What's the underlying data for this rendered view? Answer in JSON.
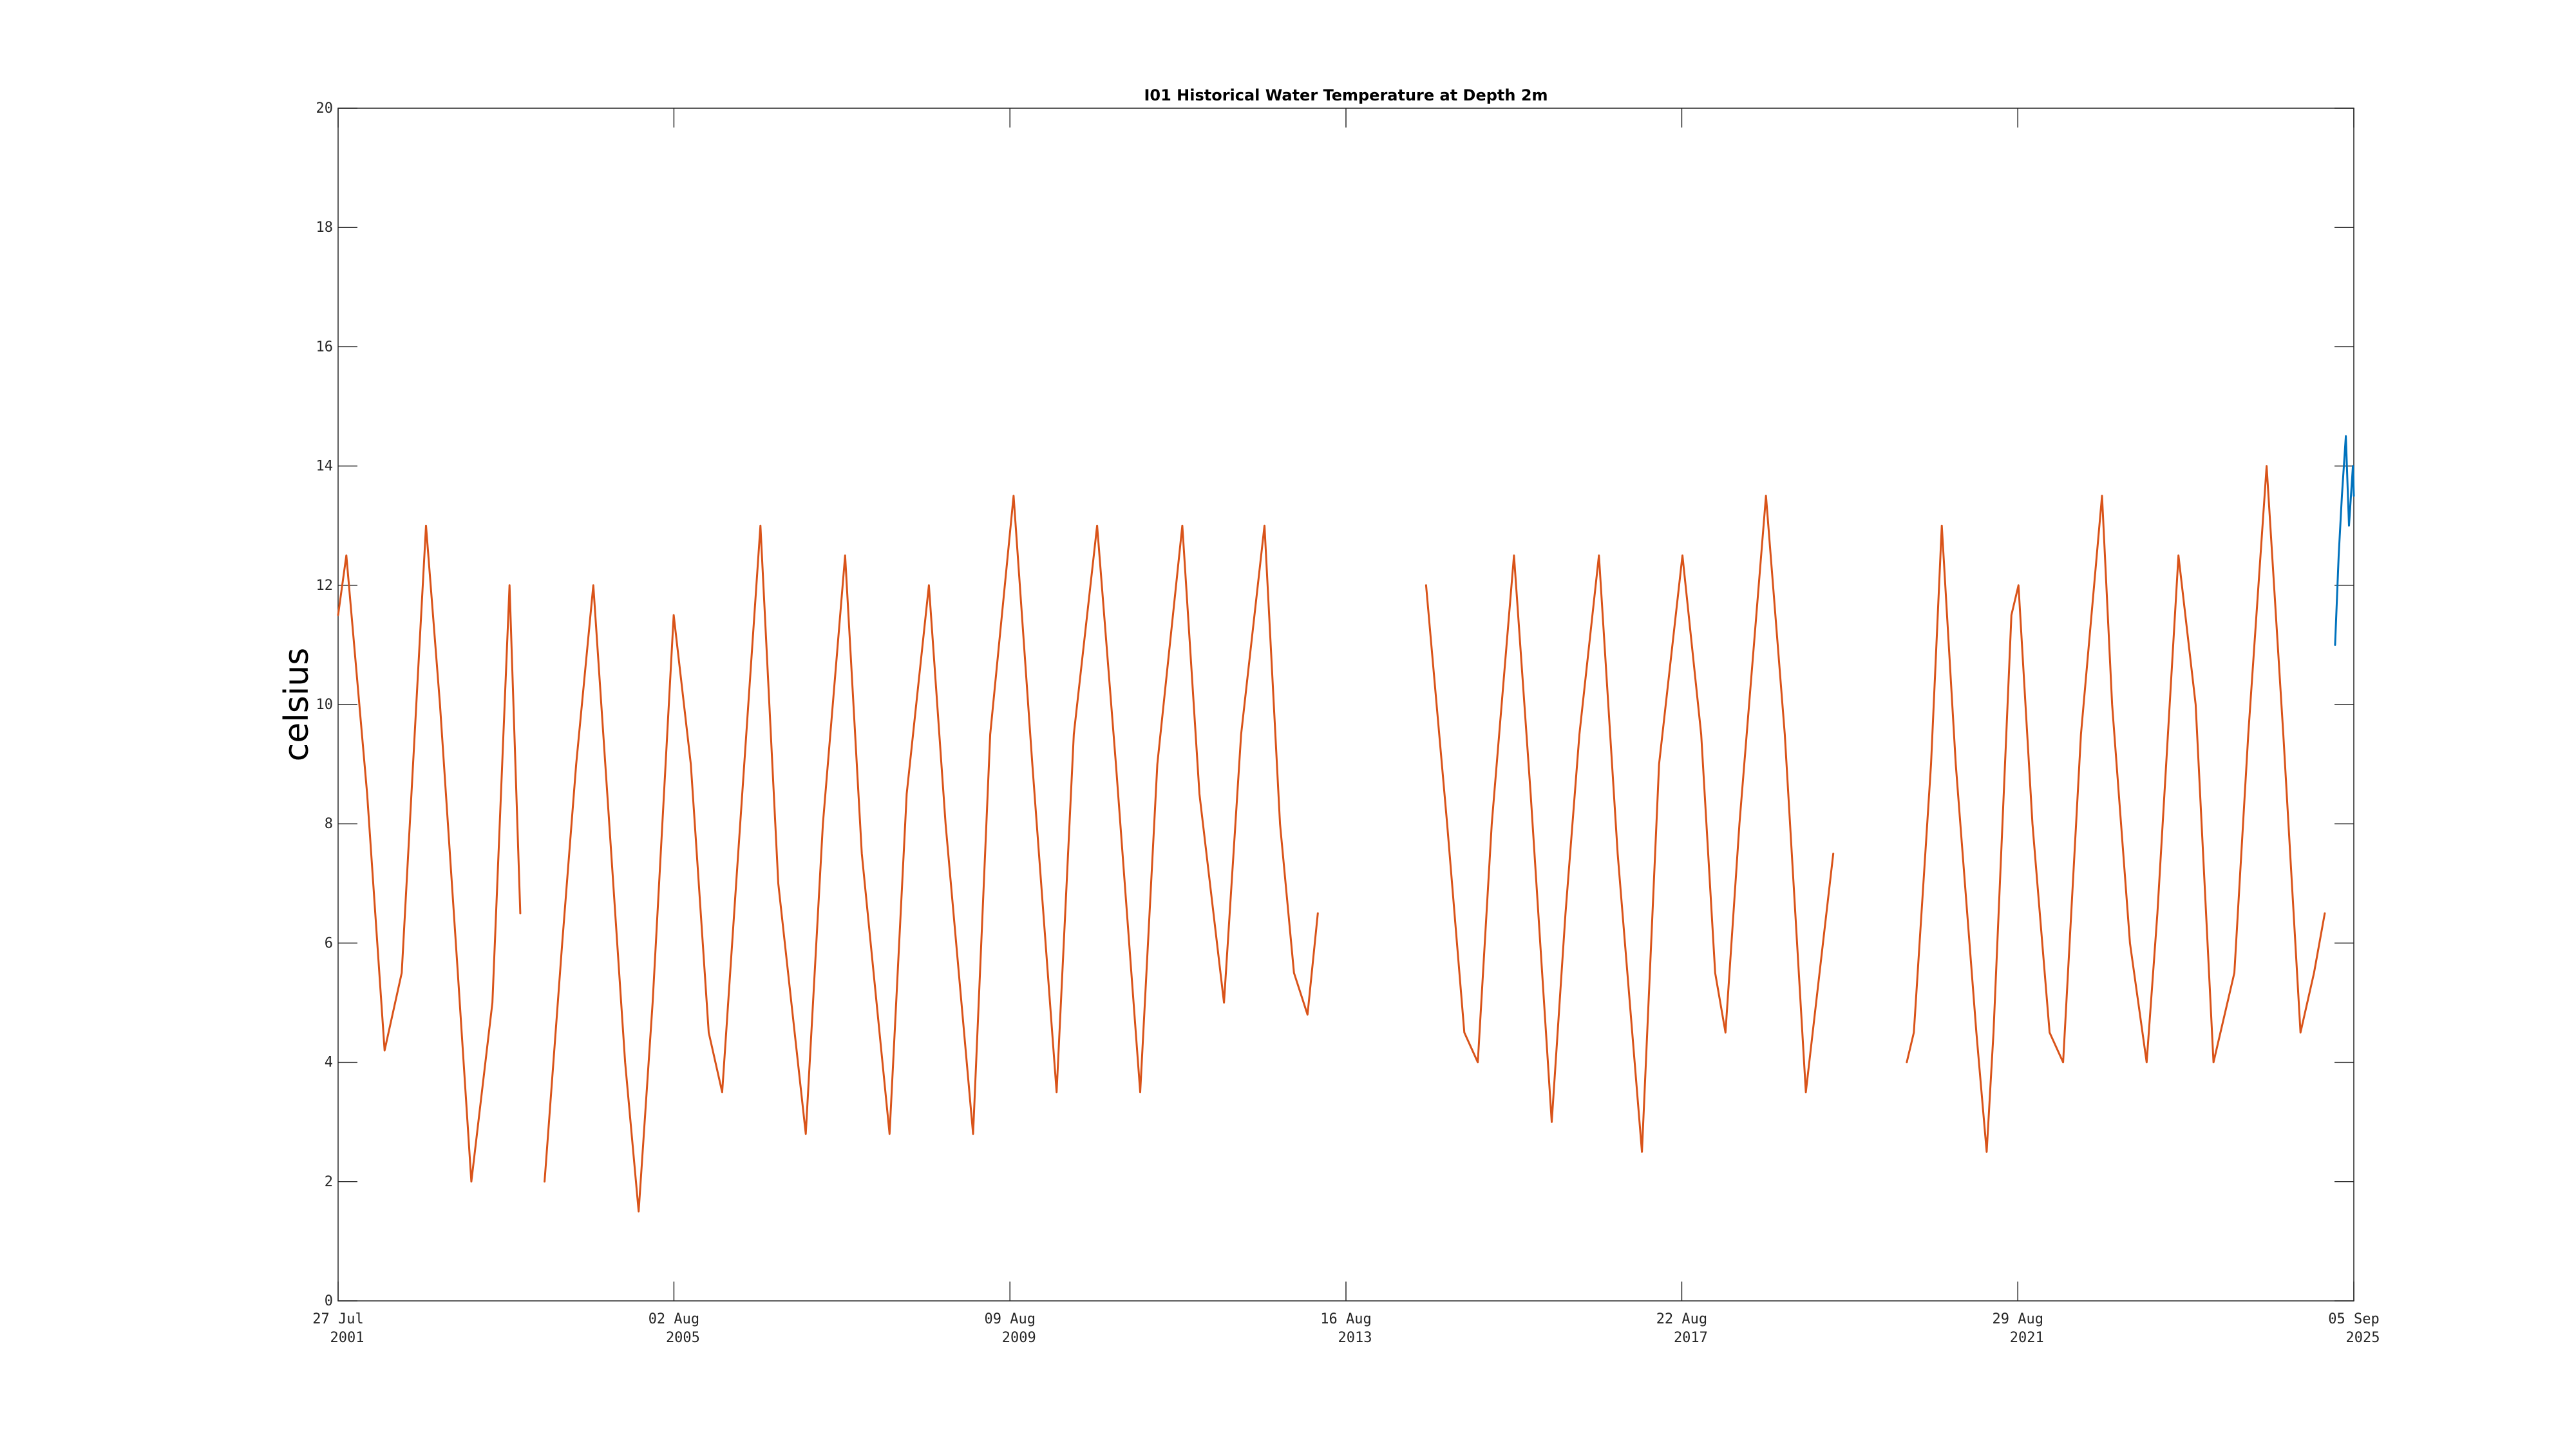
{
  "chart_data": {
    "type": "line",
    "title": "I01 Historical Water Temperature at Depth 2m",
    "xlabel": "",
    "ylabel": "celsius",
    "ylim": [
      0,
      20
    ],
    "yticks": [
      0,
      2,
      4,
      6,
      8,
      10,
      12,
      14,
      16,
      18,
      20
    ],
    "xlim": [
      "2001-07-27",
      "2025-09-05"
    ],
    "xticks": [
      {
        "date": "2001-07-27",
        "line1": "27 Jul",
        "line2": "2001"
      },
      {
        "date": "2005-08-02",
        "line1": "02 Aug",
        "line2": "2005"
      },
      {
        "date": "2009-08-09",
        "line1": "09 Aug",
        "line2": "2009"
      },
      {
        "date": "2013-08-16",
        "line1": "16 Aug",
        "line2": "2013"
      },
      {
        "date": "2017-08-22",
        "line1": "22 Aug",
        "line2": "2017"
      },
      {
        "date": "2021-08-29",
        "line1": "29 Aug",
        "line2": "2021"
      },
      {
        "date": "2025-09-05",
        "line1": "05 Sep",
        "line2": "2025"
      }
    ],
    "grid": false,
    "colors": {
      "historical": "#D95319",
      "recent": "#0072BD",
      "axis": "#262626"
    },
    "series": [
      {
        "role": "historical",
        "color": "#D95319",
        "segments": [
          {
            "x": [
              "2001-07-27",
              "2001-09-01",
              "2001-12-01",
              "2002-02-15",
              "2002-05-01",
              "2002-08-15",
              "2002-10-15",
              "2003-01-01",
              "2003-03-01",
              "2003-06-01",
              "2003-08-15",
              "2003-10-01"
            ],
            "y": [
              11.5,
              12.5,
              8.5,
              4.2,
              5.5,
              13.0,
              10.0,
              5.5,
              2.0,
              5.0,
              12.0,
              6.5
            ]
          },
          {
            "x": [
              "2004-01-15",
              "2004-04-01",
              "2004-06-01",
              "2004-08-15",
              "2004-10-15",
              "2005-01-01",
              "2005-03-01",
              "2005-05-01",
              "2005-08-01",
              "2005-10-15",
              "2006-01-01",
              "2006-03-01",
              "2006-05-01",
              "2006-08-15",
              "2006-11-01",
              "2007-03-01",
              "2007-05-15",
              "2007-08-20",
              "2007-11-01",
              "2008-03-01",
              "2008-05-15",
              "2008-08-20",
              "2008-11-01",
              "2009-03-01",
              "2009-05-15",
              "2009-08-25",
              "2009-11-15",
              "2010-03-01",
              "2010-05-15",
              "2010-08-25",
              "2010-11-15",
              "2011-03-01",
              "2011-05-15",
              "2011-09-01",
              "2011-11-15",
              "2012-03-01",
              "2012-05-15",
              "2012-08-25",
              "2012-11-01",
              "2013-01-01",
              "2013-03-01",
              "2013-04-15"
            ],
            "y": [
              2.0,
              6.0,
              9.0,
              12.0,
              8.5,
              4.0,
              1.5,
              5.0,
              11.5,
              9.0,
              4.5,
              3.5,
              7.0,
              13.0,
              7.0,
              2.8,
              8.0,
              12.5,
              7.5,
              2.8,
              8.5,
              12.0,
              8.0,
              2.8,
              9.5,
              13.5,
              9.0,
              3.5,
              9.5,
              13.0,
              9.0,
              3.5,
              9.0,
              13.0,
              8.5,
              5.0,
              9.5,
              13.0,
              8.0,
              5.5,
              4.8,
              6.5
            ]
          },
          {
            "x": [
              "2014-08-01",
              "2014-11-01",
              "2015-01-15",
              "2015-03-15",
              "2015-05-15",
              "2015-08-20",
              "2015-11-01",
              "2016-02-01",
              "2016-04-01",
              "2016-06-01",
              "2016-08-25",
              "2016-11-15",
              "2017-03-01",
              "2017-05-15",
              "2017-08-25",
              "2017-11-15",
              "2018-01-15",
              "2018-03-01",
              "2018-05-01",
              "2018-08-25",
              "2018-11-15",
              "2019-02-15",
              "2019-05-01",
              "2019-06-15"
            ],
            "y": [
              12.0,
              8.0,
              4.5,
              4.0,
              8.0,
              12.5,
              8.5,
              3.0,
              6.5,
              9.5,
              12.5,
              7.5,
              2.5,
              9.0,
              12.5,
              9.5,
              5.5,
              4.5,
              8.0,
              13.5,
              9.5,
              3.5,
              6.0,
              7.5
            ]
          },
          {
            "x": [
              "2020-05-01",
              "2020-06-01",
              "2020-08-15",
              "2020-10-01",
              "2020-12-01",
              "2021-03-01",
              "2021-04-15",
              "2021-05-15",
              "2021-08-01",
              "2021-09-01",
              "2021-11-01",
              "2022-01-15",
              "2022-03-15",
              "2022-06-01",
              "2022-09-01",
              "2022-10-15",
              "2023-01-01",
              "2023-03-15",
              "2023-05-01",
              "2023-08-01",
              "2023-10-15",
              "2024-01-01",
              "2024-04-01",
              "2024-06-01",
              "2024-08-20",
              "2024-11-01",
              "2025-01-15",
              "2025-03-15",
              "2025-05-01"
            ],
            "y": [
              4.0,
              4.5,
              9.0,
              13.0,
              9.0,
              4.5,
              2.5,
              4.5,
              11.5,
              12.0,
              8.0,
              4.5,
              4.0,
              9.5,
              13.5,
              10.0,
              6.0,
              4.0,
              6.5,
              12.5,
              10.0,
              4.0,
              5.5,
              9.5,
              14.0,
              9.5,
              4.5,
              5.5,
              6.5
            ]
          }
        ]
      },
      {
        "role": "recent",
        "color": "#0072BD",
        "segments": [
          {
            "x": [
              "2025-06-15",
              "2025-07-01",
              "2025-07-15",
              "2025-08-01",
              "2025-08-15",
              "2025-09-01",
              "2025-09-05"
            ],
            "y": [
              11.0,
              12.5,
              13.5,
              14.5,
              13.0,
              14.0,
              13.5
            ]
          }
        ]
      }
    ]
  }
}
